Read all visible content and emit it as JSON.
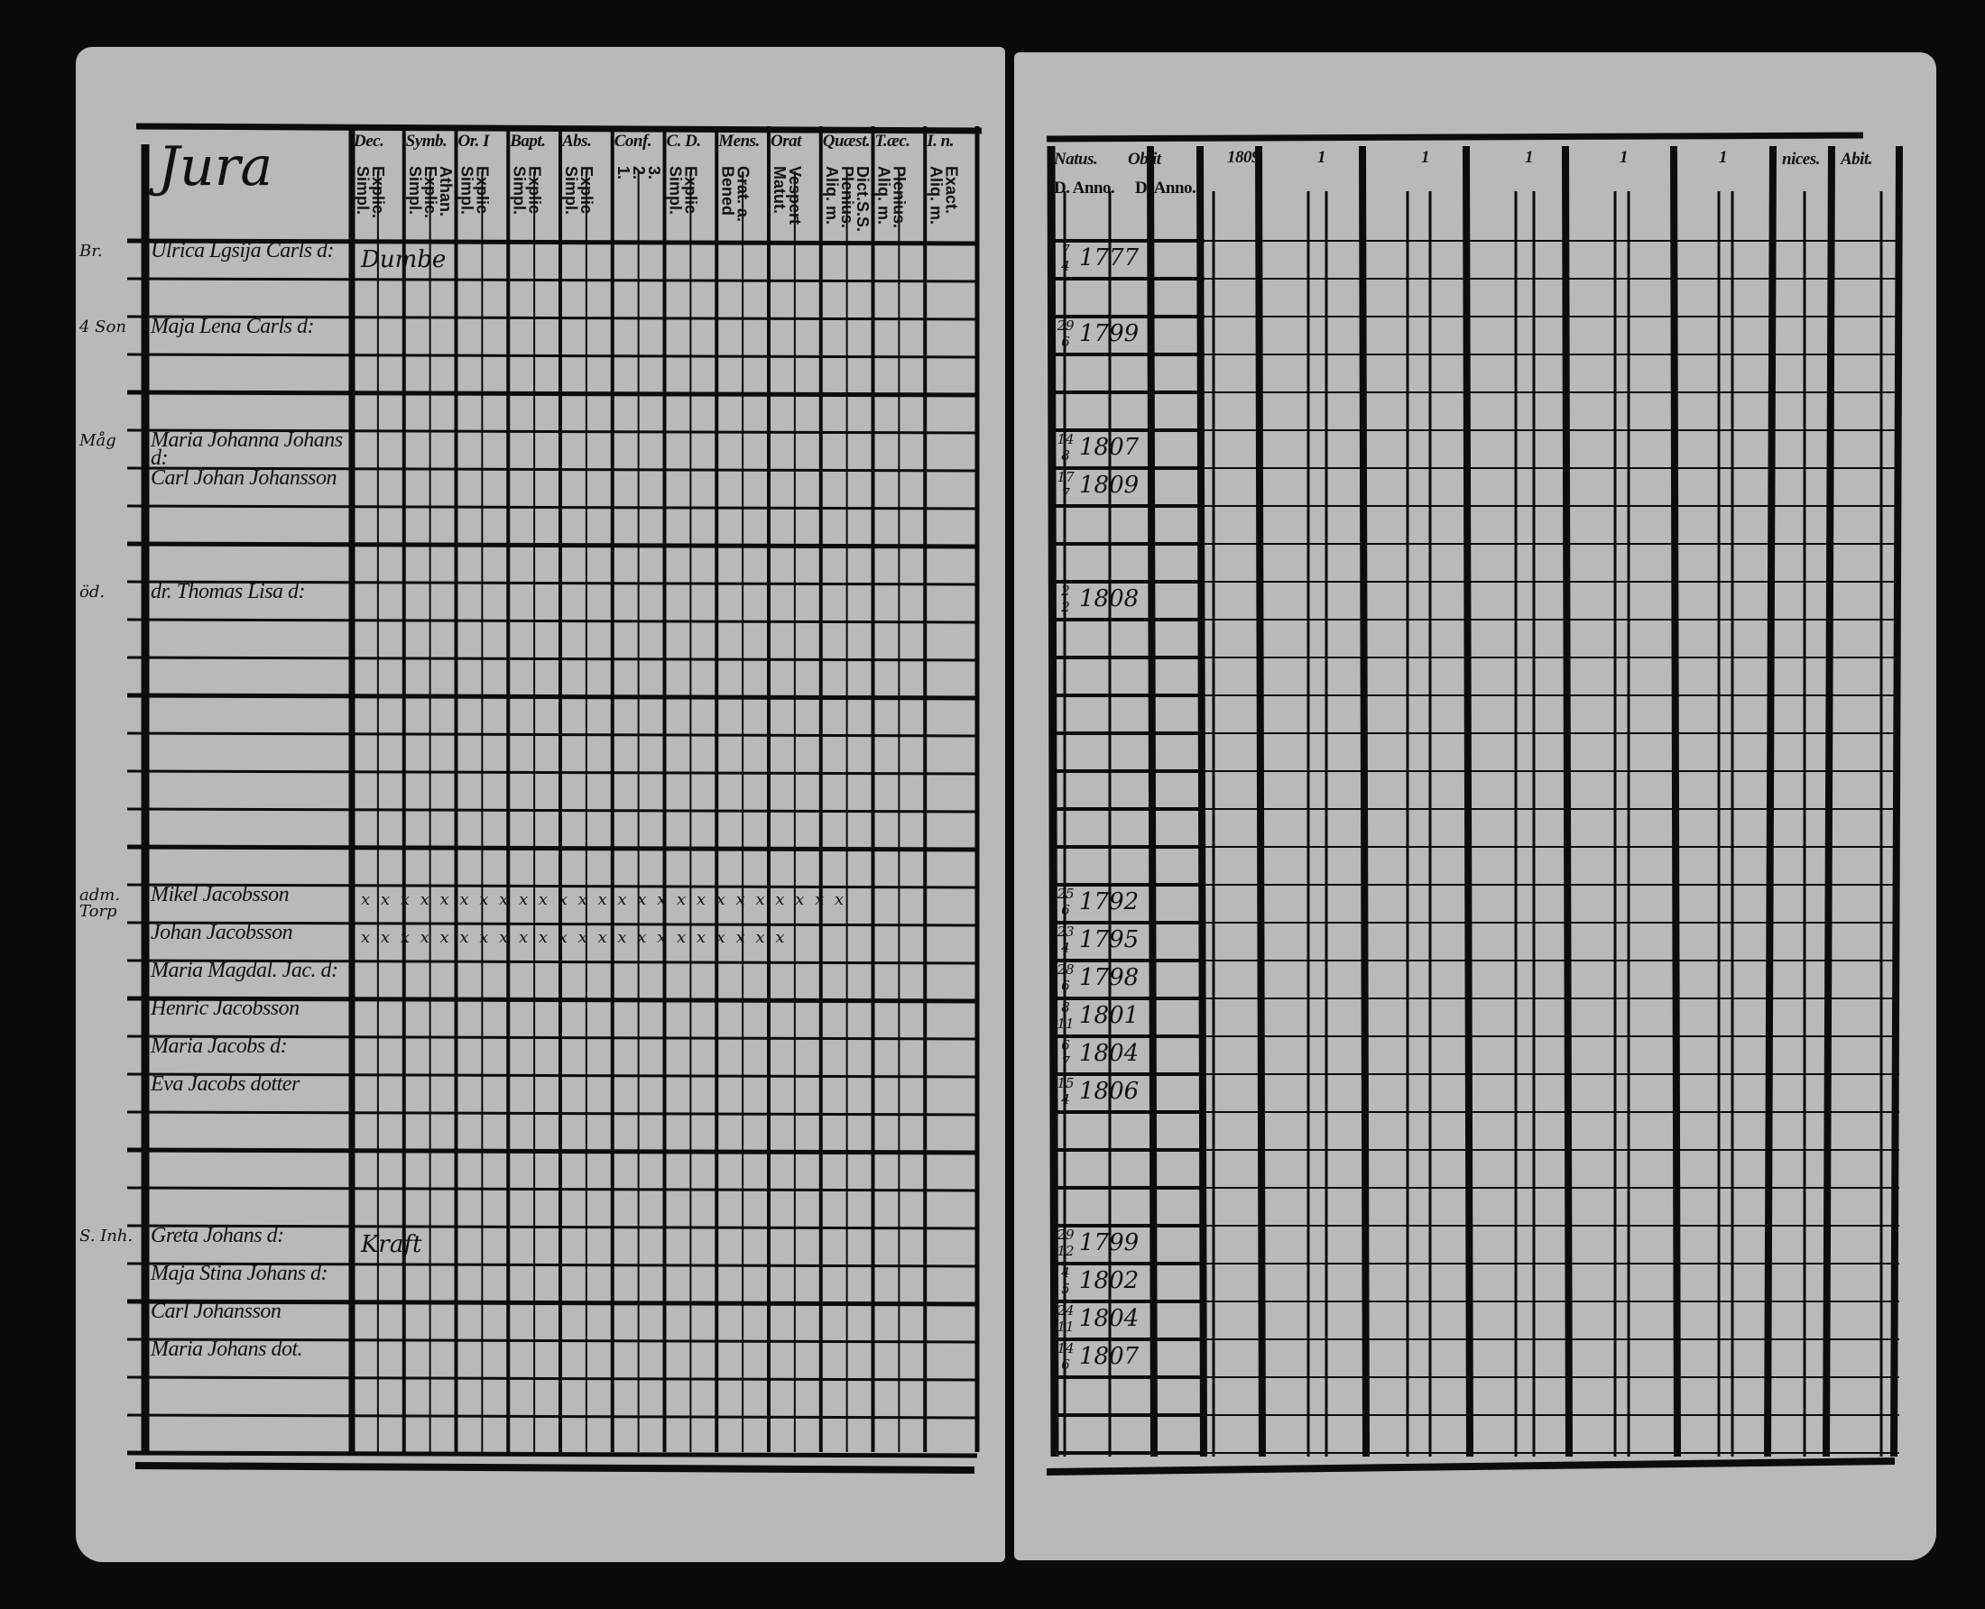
{
  "left_page": {
    "title": "Jura",
    "columns": [
      {
        "head": "Dec.",
        "sub": "Explic.\nSimpl."
      },
      {
        "head": "Symb.",
        "sub": "Athan.\nExplic.\nSimpl."
      },
      {
        "head": "Or. I",
        "sub": "Explic\nSimpl."
      },
      {
        "head": "Bapt.",
        "sub": "Explic\nSimpl."
      },
      {
        "head": "Abs.",
        "sub": "Explic\nSimpl."
      },
      {
        "head": "Conf.",
        "sub": "3.\n2.\n1."
      },
      {
        "head": "C. D.",
        "sub": "Explic\nSimpl."
      },
      {
        "head": "Mens.",
        "sub": "Grat. a.\nBened"
      },
      {
        "head": "Orat",
        "sub": "Vespert\nMatut."
      },
      {
        "head": "Quæst.",
        "sub": "Dict.S.S.\nPlenius.\nAliq. m."
      },
      {
        "head": "T.æc.",
        "sub": "Plenius.\nAliq. m."
      },
      {
        "head": "I. n.",
        "sub": "Exact.\nAliq. m."
      }
    ],
    "entries": [
      {
        "row": 0,
        "margin": "Br.",
        "name": "Ulrica Lgsija Carls d:",
        "note": "Dumbe"
      },
      {
        "row": 2,
        "margin": "4 Son",
        "name": "Maja Lena Carls d:",
        "note": ""
      },
      {
        "row": 5,
        "margin": "Måg",
        "name": "Maria Johanna Johans d:",
        "note": ""
      },
      {
        "row": 6,
        "margin": "",
        "name": "Carl Johan Johansson",
        "note": ""
      },
      {
        "row": 9,
        "margin": "öd.",
        "name": "dr. Thomas Lisa d:",
        "note": ""
      },
      {
        "row": 17,
        "margin": "adm. Torp",
        "name": "Mikel Jacobsson",
        "note": "x x x x x x x x x x x x x x x x x x x x x x x x x"
      },
      {
        "row": 18,
        "margin": "",
        "name": "Johan Jacobsson",
        "note": "x x x x x x x x x x x x x x x x x x x x x x"
      },
      {
        "row": 19,
        "margin": "",
        "name": "Maria Magdal. Jac. d:",
        "note": ""
      },
      {
        "row": 20,
        "margin": "",
        "name": "Henric Jacobsson",
        "note": ""
      },
      {
        "row": 21,
        "margin": "",
        "name": "Maria Jacobs d:",
        "note": ""
      },
      {
        "row": 22,
        "margin": "",
        "name": "Eva Jacobs dotter",
        "note": ""
      },
      {
        "row": 26,
        "margin": "S. Inh.",
        "name": "Greta Johans d:",
        "note": "Kraft"
      },
      {
        "row": 27,
        "margin": "",
        "name": "Maja Stina Johans d:",
        "note": ""
      },
      {
        "row": 28,
        "margin": "",
        "name": "Carl Johansson",
        "note": ""
      },
      {
        "row": 29,
        "margin": "",
        "name": "Maria Johans dot.",
        "note": ""
      }
    ]
  },
  "right_page": {
    "headers": {
      "natus": "Natus.",
      "obiit": "Obiit",
      "d_anno_1": "D. Anno.",
      "d_anno_2": "D. Anno.",
      "years": [
        "1809",
        "1",
        "1",
        "1",
        "1",
        "1"
      ],
      "nices": "nices.",
      "abit": "Abit."
    },
    "dates": [
      {
        "row": 0,
        "day": "7",
        "month": "4",
        "year": "1777"
      },
      {
        "row": 2,
        "day": "29",
        "month": "6",
        "year": "1799"
      },
      {
        "row": 5,
        "day": "14",
        "month": "8",
        "year": "1807"
      },
      {
        "row": 6,
        "day": "17",
        "month": "7",
        "year": "1809"
      },
      {
        "row": 9,
        "day": "2",
        "month": "2",
        "year": "1808"
      },
      {
        "row": 17,
        "day": "25",
        "month": "6",
        "year": "1792"
      },
      {
        "row": 18,
        "day": "23",
        "month": "4",
        "year": "1795"
      },
      {
        "row": 19,
        "day": "28",
        "month": "6",
        "year": "1798"
      },
      {
        "row": 20,
        "day": "8",
        "month": "11",
        "year": "1801"
      },
      {
        "row": 21,
        "day": "6",
        "month": "7",
        "year": "1804"
      },
      {
        "row": 22,
        "day": "15",
        "month": "4",
        "year": "1806"
      },
      {
        "row": 26,
        "day": "29",
        "month": "12",
        "year": "1799"
      },
      {
        "row": 27,
        "day": "4",
        "month": "5",
        "year": "1802"
      },
      {
        "row": 28,
        "day": "24",
        "month": "11",
        "year": "1804"
      },
      {
        "row": 29,
        "day": "14",
        "month": "6",
        "year": "1807"
      }
    ]
  }
}
